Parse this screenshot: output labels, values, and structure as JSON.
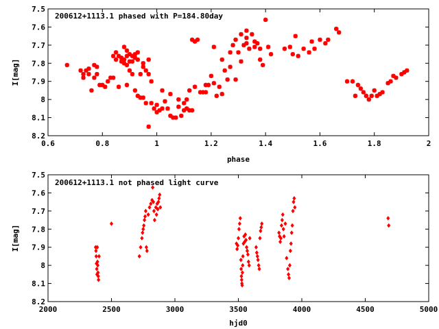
{
  "chart_data": [
    {
      "type": "scatter",
      "title": "200612+1113.1 phased with P=184.80day",
      "xlabel": "phase",
      "ylabel": "I[mag]",
      "xlim": [
        0.6,
        2.0
      ],
      "ylim": [
        8.2,
        7.5
      ],
      "y_inverted": true,
      "xticks": [
        "0.6",
        "0.8",
        "1",
        "1.2",
        "1.4",
        "1.6",
        "1.8",
        "2"
      ],
      "yticks": [
        "7.5",
        "7.6",
        "7.7",
        "7.8",
        "7.9",
        "8",
        "8.1",
        "8.2"
      ],
      "marker": "star",
      "color": "#ff0000",
      "series": [
        {
          "x": [
            0.67,
            0.72,
            0.73,
            0.73,
            0.74,
            0.75,
            0.75,
            0.76,
            0.77,
            0.77,
            0.78,
            0.78,
            0.79,
            0.8,
            0.81,
            0.82,
            0.83,
            0.84,
            0.84,
            0.85,
            0.86,
            0.86,
            0.87,
            0.87,
            0.88,
            0.88,
            0.88,
            0.89,
            0.89,
            0.89,
            0.9,
            0.9,
            0.9,
            0.91,
            0.91,
            0.91,
            0.92,
            0.92,
            0.93,
            0.93,
            0.93,
            0.94,
            0.94,
            0.95,
            0.95,
            0.96,
            0.96,
            0.97,
            0.97,
            0.98,
            0.98,
            0.99,
            1.0,
            1.0,
            1.01,
            1.02,
            1.02,
            1.03,
            1.04,
            1.05,
            1.06,
            1.07,
            1.08,
            1.09,
            1.1,
            1.1,
            1.11,
            1.11,
            1.12,
            1.12,
            1.13,
            1.14,
            1.14,
            1.15,
            1.16,
            1.17,
            1.18,
            1.19,
            1.2,
            1.21,
            1.21,
            1.22,
            1.23,
            1.24,
            1.25,
            1.26,
            1.27,
            1.28,
            1.29,
            1.29,
            1.3,
            1.31,
            1.31,
            1.32,
            1.33,
            1.33,
            1.34,
            1.35,
            1.36,
            1.37,
            1.38,
            1.38,
            1.39,
            1.4,
            1.41,
            1.42,
            1.47,
            1.49,
            1.5,
            1.51,
            1.52,
            1.54,
            1.56,
            1.57,
            1.58,
            1.6,
            1.62,
            1.63,
            1.66,
            1.67,
            1.7,
            1.72,
            1.73,
            1.74,
            1.75,
            1.76,
            1.77,
            1.78,
            1.79,
            1.8,
            1.81,
            1.82,
            1.83,
            1.85,
            1.86,
            1.87,
            1.88,
            1.9,
            1.91,
            1.92,
            0.85,
            0.89,
            0.92,
            0.95,
            0.97,
            1.05,
            1.08,
            1.13,
            1.18,
            1.24,
            1.27,
            1.33,
            1.36
          ],
          "y": [
            7.81,
            7.84,
            7.86,
            7.88,
            7.84,
            7.83,
            7.86,
            7.95,
            7.81,
            7.88,
            7.82,
            7.86,
            7.92,
            7.92,
            7.93,
            7.9,
            7.88,
            7.88,
            7.76,
            7.74,
            7.76,
            7.93,
            7.77,
            7.79,
            7.78,
            7.8,
            7.71,
            7.76,
            7.81,
            7.92,
            7.75,
            7.79,
            7.84,
            7.76,
            7.79,
            7.86,
            7.75,
            7.95,
            7.74,
            7.78,
            7.98,
            7.86,
            7.99,
            7.82,
            7.99,
            7.84,
            8.02,
            7.86,
            8.15,
            7.9,
            8.02,
            8.05,
            8.03,
            8.07,
            8.06,
            8.05,
            7.95,
            8.01,
            8.05,
            8.09,
            8.1,
            8.1,
            8.04,
            8.09,
            8.06,
            8.02,
            8.05,
            8.0,
            7.95,
            8.06,
            8.06,
            7.68,
            7.93,
            7.67,
            7.96,
            7.96,
            7.96,
            7.92,
            7.87,
            7.91,
            7.71,
            7.98,
            7.93,
            7.78,
            7.84,
            7.89,
            7.74,
            7.7,
            7.67,
            7.89,
            7.74,
            7.64,
            7.79,
            7.7,
            7.62,
            7.69,
            7.72,
            7.64,
            7.68,
            7.69,
            7.72,
            7.78,
            7.81,
            7.56,
            7.71,
            7.75,
            7.72,
            7.71,
            7.75,
            7.65,
            7.76,
            7.72,
            7.74,
            7.68,
            7.72,
            7.67,
            7.69,
            7.67,
            7.61,
            7.63,
            7.9,
            7.9,
            7.98,
            7.92,
            7.94,
            7.96,
            7.98,
            8.0,
            7.98,
            7.95,
            7.98,
            7.97,
            7.96,
            7.91,
            7.9,
            7.87,
            7.88,
            7.86,
            7.85,
            7.84,
            7.78,
            7.73,
            7.77,
            7.8,
            7.78,
            7.97,
            8.0,
            7.67,
            7.92,
            7.97,
            7.82,
            7.66,
            7.71
          ]
        }
      ]
    },
    {
      "type": "scatter",
      "title": "200612+1113.1 not phased light curve",
      "xlabel": "hjd0",
      "ylabel": "I[mag]",
      "xlim": [
        2000,
        5000
      ],
      "ylim": [
        8.2,
        7.5
      ],
      "y_inverted": true,
      "xticks": [
        "2000",
        "2500",
        "3000",
        "3500",
        "4000",
        "4500",
        "5000"
      ],
      "yticks": [
        "7.5",
        "7.6",
        "7.7",
        "7.8",
        "7.9",
        "8",
        "8.1",
        "8.2"
      ],
      "marker": "diamond",
      "color": "#ff0000",
      "series": [
        {
          "x": [
            2375,
            2378,
            2380,
            2382,
            2384,
            2386,
            2388,
            2390,
            2392,
            2394,
            2396,
            2398,
            2402,
            2500,
            2720,
            2730,
            2740,
            2745,
            2750,
            2755,
            2760,
            2765,
            2770,
            2775,
            2780,
            2790,
            2800,
            2810,
            2820,
            2825,
            2830,
            2835,
            2840,
            2850,
            2855,
            2860,
            2865,
            2870,
            2875,
            2880,
            2885,
            3485,
            3490,
            3495,
            3500,
            3505,
            3510,
            3515,
            3520,
            3522,
            3524,
            3526,
            3528,
            3530,
            3532,
            3534,
            3536,
            3540,
            3545,
            3550,
            3555,
            3560,
            3565,
            3570,
            3575,
            3580,
            3585,
            3590,
            3640,
            3645,
            3650,
            3655,
            3660,
            3665,
            3670,
            3675,
            3680,
            3685,
            3820,
            3825,
            3830,
            3835,
            3840,
            3845,
            3850,
            3855,
            3860,
            3870,
            3880,
            3890,
            3895,
            3900,
            3905,
            3910,
            3915,
            3920,
            3925,
            3930,
            3935,
            3940,
            3945,
            4680,
            4685
          ],
          "y": [
            7.9,
            7.92,
            7.95,
            7.99,
            8.02,
            8.05,
            7.9,
            7.98,
            8.0,
            8.04,
            8.06,
            8.08,
            7.95,
            7.77,
            7.95,
            7.9,
            7.85,
            7.82,
            7.8,
            7.78,
            7.75,
            7.73,
            7.7,
            7.9,
            7.92,
            7.72,
            7.68,
            7.66,
            7.64,
            7.57,
            7.65,
            7.7,
            7.75,
            7.68,
            7.72,
            7.66,
            7.69,
            7.65,
            7.63,
            7.61,
            7.68,
            7.88,
            7.91,
            7.89,
            7.85,
            7.8,
            7.77,
            7.74,
            7.97,
            8.02,
            8.06,
            8.08,
            8.1,
            8.11,
            8.04,
            8.0,
            7.95,
            7.88,
            7.84,
            7.87,
            7.83,
            7.86,
            7.9,
            7.92,
            7.94,
            7.98,
            8.0,
            7.85,
            7.9,
            7.93,
            7.95,
            7.97,
            8.0,
            8.02,
            7.85,
            7.81,
            7.79,
            7.77,
            7.82,
            7.84,
            7.87,
            7.85,
            7.78,
            7.75,
            7.72,
            7.8,
            7.84,
            7.77,
            7.96,
            8.02,
            8.05,
            8.07,
            8.0,
            7.92,
            7.88,
            7.82,
            7.78,
            7.7,
            7.65,
            7.63,
            7.68,
            7.74,
            7.78
          ]
        }
      ]
    }
  ]
}
